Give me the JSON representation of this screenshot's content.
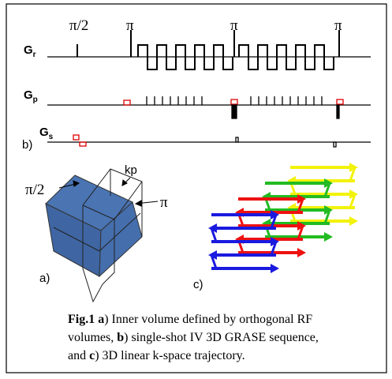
{
  "sequence": {
    "rf_labels": [
      "π/2",
      "π",
      "π",
      "π"
    ],
    "gradients": [
      {
        "label": "G",
        "subscript": "r"
      },
      {
        "label": "G",
        "subscript": "p"
      },
      {
        "label": "G",
        "subscript": "s"
      }
    ],
    "panel_label": "b)"
  },
  "volume": {
    "labels": [
      "π/2",
      "kp",
      "π"
    ],
    "panel_label": "a)"
  },
  "trajectory": {
    "panel_label": "c)"
  },
  "caption": {
    "parts": [
      {
        "text": "Fig.1 a",
        "bold": true
      },
      {
        "text": ") Inner volume defined by orthogonal RF volumes, ",
        "bold": false
      },
      {
        "text": "b",
        "bold": true
      },
      {
        "text": ") single-shot IV 3D GRASE sequence, and ",
        "bold": false
      },
      {
        "text": "c",
        "bold": true
      },
      {
        "text": ") 3D linear k-space trajectory.",
        "bold": false
      }
    ]
  }
}
